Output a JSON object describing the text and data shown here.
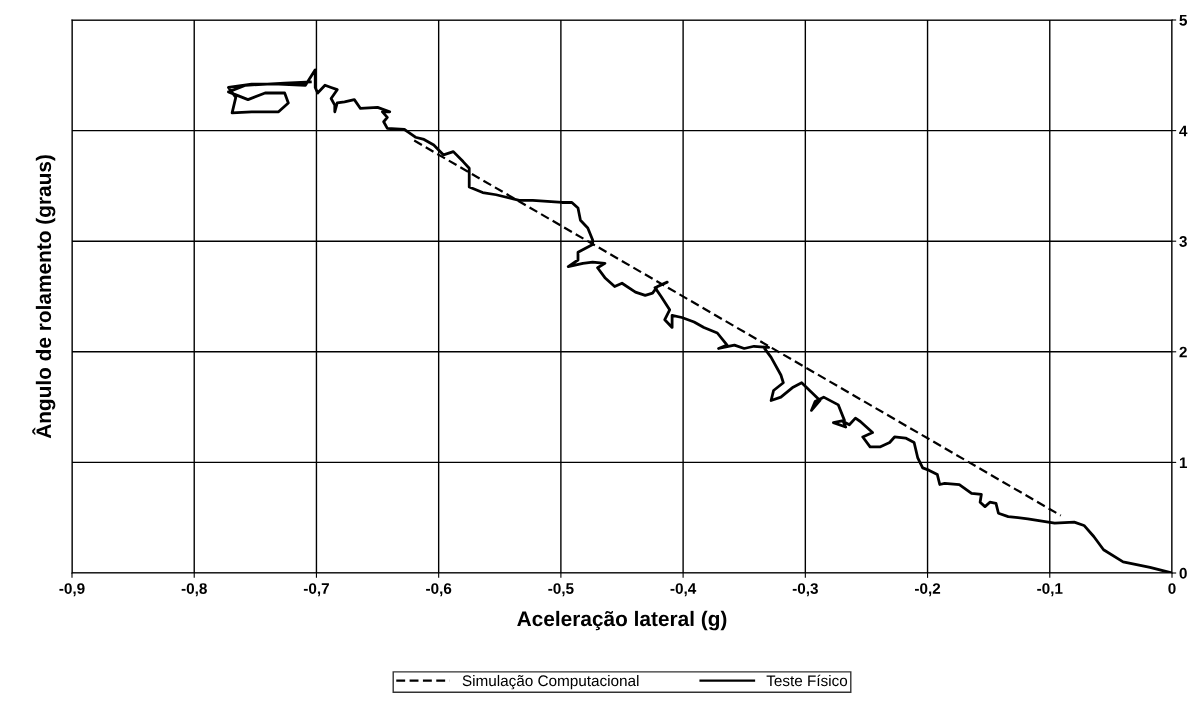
{
  "chart_data": {
    "type": "line",
    "xlabel": "Aceleração lateral (g)",
    "ylabel": "Ângulo de rolamento (graus)",
    "xlim": [
      -0.9,
      0
    ],
    "ylim": [
      0,
      5
    ],
    "xticks": [
      {
        "value": -0.9,
        "label": "-0,9"
      },
      {
        "value": -0.8,
        "label": "-0,8"
      },
      {
        "value": -0.7,
        "label": "-0,7"
      },
      {
        "value": -0.6,
        "label": "-0,6"
      },
      {
        "value": -0.5,
        "label": "-0,5"
      },
      {
        "value": -0.4,
        "label": "-0,4"
      },
      {
        "value": -0.3,
        "label": "-0,3"
      },
      {
        "value": -0.2,
        "label": "-0,2"
      },
      {
        "value": -0.1,
        "label": "-0,1"
      },
      {
        "value": 0,
        "label": "0"
      }
    ],
    "yticks": [
      0,
      1,
      2,
      3,
      4,
      5
    ],
    "grid": true,
    "legend": "bottom",
    "series": [
      {
        "name": "Simulação Computacional",
        "color": "#000000",
        "line_style": "dashed",
        "x": [
          -0.62,
          -0.091
        ],
        "values": [
          3.91,
          0.52
        ]
      },
      {
        "name": "Teste Físico",
        "color": "#000000",
        "line_style": "solid",
        "x": [
          0.0,
          -0.018,
          -0.04,
          -0.056,
          -0.064,
          -0.072,
          -0.08,
          -0.096,
          -0.118,
          -0.134,
          -0.142,
          -0.144,
          -0.149,
          -0.153,
          -0.157,
          -0.156,
          -0.164,
          -0.174,
          -0.186,
          -0.19,
          -0.192,
          -0.199,
          -0.204,
          -0.208,
          -0.211,
          -0.218,
          -0.227,
          -0.231,
          -0.239,
          -0.247,
          -0.253,
          -0.245,
          -0.255,
          -0.259,
          -0.264,
          -0.269,
          -0.267,
          -0.277,
          -0.268,
          -0.273,
          -0.285,
          -0.292,
          -0.295,
          -0.288,
          -0.303,
          -0.31,
          -0.32,
          -0.328,
          -0.326,
          -0.318,
          -0.32,
          -0.328,
          -0.334,
          -0.33,
          -0.342,
          -0.35,
          -0.358,
          -0.371,
          -0.364,
          -0.372,
          -0.383,
          -0.391,
          -0.401,
          -0.409,
          -0.409,
          -0.415,
          -0.411,
          -0.418,
          -0.423,
          -0.413,
          -0.421,
          -0.425,
          -0.431,
          -0.439,
          -0.45,
          -0.456,
          -0.464,
          -0.47,
          -0.464,
          -0.474,
          -0.482,
          -0.494,
          -0.486,
          -0.486,
          -0.474,
          -0.474,
          -0.478,
          -0.484,
          -0.486,
          -0.491,
          -0.499,
          -0.523,
          -0.534,
          -0.553,
          -0.564,
          -0.575,
          -0.575,
          -0.58,
          -0.588,
          -0.596,
          -0.604,
          -0.612,
          -0.619,
          -0.624,
          -0.628,
          -0.642,
          -0.645,
          -0.642,
          -0.646,
          -0.64,
          -0.65,
          -0.664,
          -0.669,
          -0.677,
          -0.683,
          -0.685,
          -0.685,
          -0.688,
          -0.683,
          -0.688,
          -0.693,
          -0.699,
          -0.701,
          -0.701,
          -0.709,
          -0.731,
          -0.753,
          -0.772,
          -0.766,
          -0.769,
          -0.753,
          -0.731,
          -0.723,
          -0.726,
          -0.742,
          -0.756,
          -0.772,
          -0.758,
          -0.726,
          -0.705
        ],
        "values": [
          0.0,
          0.05,
          0.1,
          0.21,
          0.33,
          0.43,
          0.46,
          0.45,
          0.49,
          0.51,
          0.54,
          0.63,
          0.64,
          0.6,
          0.64,
          0.71,
          0.72,
          0.8,
          0.81,
          0.8,
          0.89,
          0.93,
          0.95,
          1.04,
          1.18,
          1.22,
          1.23,
          1.18,
          1.14,
          1.14,
          1.23,
          1.27,
          1.37,
          1.4,
          1.34,
          1.37,
          1.32,
          1.36,
          1.38,
          1.52,
          1.59,
          1.55,
          1.47,
          1.56,
          1.72,
          1.68,
          1.59,
          1.56,
          1.65,
          1.72,
          1.79,
          1.95,
          2.04,
          2.04,
          2.05,
          2.03,
          2.06,
          2.03,
          2.06,
          2.17,
          2.22,
          2.27,
          2.31,
          2.33,
          2.22,
          2.29,
          2.38,
          2.5,
          2.58,
          2.63,
          2.59,
          2.53,
          2.51,
          2.54,
          2.62,
          2.59,
          2.67,
          2.76,
          2.8,
          2.81,
          2.8,
          2.77,
          2.83,
          2.9,
          2.97,
          3.01,
          3.12,
          3.19,
          3.3,
          3.35,
          3.35,
          3.37,
          3.37,
          3.42,
          3.44,
          3.49,
          3.66,
          3.72,
          3.81,
          3.78,
          3.87,
          3.92,
          3.94,
          3.98,
          4.01,
          4.02,
          4.08,
          4.12,
          4.17,
          4.17,
          4.21,
          4.2,
          4.28,
          4.26,
          4.25,
          4.17,
          4.23,
          4.29,
          4.37,
          4.39,
          4.41,
          4.34,
          4.39,
          4.55,
          4.41,
          4.42,
          4.42,
          4.39,
          4.3,
          4.16,
          4.17,
          4.17,
          4.25,
          4.34,
          4.34,
          4.28,
          4.35,
          4.41,
          4.43,
          4.44
        ]
      }
    ]
  }
}
